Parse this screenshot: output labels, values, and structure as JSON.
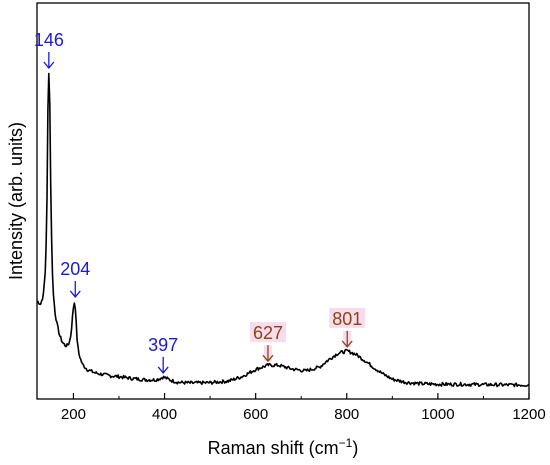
{
  "chart_data": {
    "type": "line",
    "xlabel": "Raman shift (cm",
    "xlabel_sup": "−1",
    "xlabel_tail": ")",
    "ylabel": "Intensity (arb. units)",
    "xlim": [
      120,
      1200
    ],
    "ylim": [
      0,
      100
    ],
    "y_ticks_labeled": false,
    "grid": false,
    "x_ticks": [
      200,
      400,
      600,
      800,
      1000,
      1200
    ],
    "x_tick_labels": [
      "200",
      "400",
      "600",
      "800",
      "1000",
      "1200"
    ],
    "series": [
      {
        "color": "#000000",
        "x": [
          120,
          128,
          134,
          138,
          141,
          143,
          144,
          145,
          146,
          147,
          148,
          149,
          151,
          153,
          156,
          160,
          165,
          170,
          176,
          182,
          187,
          191,
          194,
          197,
          199,
          201,
          203,
          204,
          206,
          208,
          211,
          215,
          220,
          230,
          245,
          260,
          280,
          300,
          330,
          360,
          380,
          390,
          397,
          405,
          415,
          430,
          460,
          500,
          540,
          570,
          600,
          627,
          650,
          680,
          710,
          740,
          760,
          780,
          801,
          820,
          840,
          860,
          880,
          900,
          930,
          960,
          1000,
          1050,
          1100,
          1150,
          1200
        ],
        "y": [
          28,
          27,
          30,
          37,
          50,
          70,
          88,
          97,
          100,
          97,
          90,
          75,
          55,
          40,
          30,
          24,
          20,
          17,
          15,
          14,
          14,
          15,
          17,
          21,
          25,
          27,
          28,
          26,
          21,
          16,
          12,
          10,
          8,
          6.5,
          5.5,
          5,
          4.5,
          4.2,
          3.6,
          3.2,
          3.2,
          3.6,
          4.1,
          3.6,
          3.0,
          2.4,
          2.2,
          2.3,
          2.8,
          4.2,
          6.5,
          7.8,
          7.8,
          6.6,
          6.0,
          7.2,
          9.5,
          11.5,
          12.3,
          11.2,
          9.2,
          7.0,
          5.0,
          3.4,
          2.4,
          2.0,
          1.8,
          1.8,
          1.7,
          1.6,
          1.6
        ]
      }
    ],
    "annotations": [
      {
        "text": "146",
        "x": 146,
        "y": 100,
        "color": "#1a1adc"
      },
      {
        "text": "204",
        "x": 204,
        "y": 28,
        "color": "#1a1adc"
      },
      {
        "text": "397",
        "x": 397,
        "y": 4.1,
        "color": "#1a1adc"
      },
      {
        "text": "627",
        "x": 627,
        "y": 7.8,
        "color": "#8b4513",
        "highlight": "#f6dcec"
      },
      {
        "text": "801",
        "x": 801,
        "y": 12.3,
        "color": "#8b4513",
        "highlight": "#f6dcec"
      }
    ]
  }
}
